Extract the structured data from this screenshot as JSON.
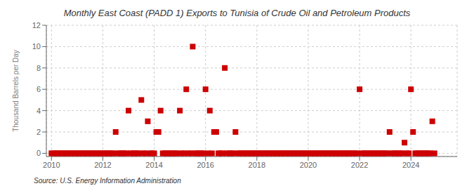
{
  "chart_data": {
    "type": "scatter",
    "title": "Monthly East Coast (PADD 1) Exports to Tunisia of Crude Oil and Petroleum Products",
    "ylabel": "Thousand Barrels per Day",
    "annotation": "Source: U.S. Energy Information Administration",
    "color": "#cc0000",
    "marker": "square",
    "grid": true,
    "xlim": [
      2009.8,
      2025.8
    ],
    "ylim": [
      -0.3,
      12
    ],
    "xticks": [
      2010,
      2012,
      2014,
      2016,
      2018,
      2020,
      2022,
      2024
    ],
    "yticks": [
      0,
      2,
      4,
      6,
      8,
      10,
      12
    ],
    "x": [
      2010.0,
      2010.083,
      2010.167,
      2010.25,
      2010.333,
      2010.417,
      2010.5,
      2010.583,
      2010.667,
      2010.75,
      2010.833,
      2010.917,
      2011.0,
      2011.083,
      2011.167,
      2011.25,
      2011.333,
      2011.417,
      2011.5,
      2011.583,
      2011.667,
      2011.75,
      2011.833,
      2011.917,
      2012.0,
      2012.083,
      2012.167,
      2012.25,
      2012.333,
      2012.417,
      2012.5,
      2012.583,
      2012.667,
      2012.75,
      2012.833,
      2012.917,
      2013.0,
      2013.083,
      2013.167,
      2013.25,
      2013.333,
      2013.417,
      2013.5,
      2013.583,
      2013.667,
      2013.75,
      2013.833,
      2013.917,
      2014.0,
      2014.083,
      2014.167,
      2014.25,
      2014.333,
      2014.417,
      2014.5,
      2014.583,
      2014.667,
      2014.75,
      2014.833,
      2014.917,
      2015.0,
      2015.083,
      2015.167,
      2015.25,
      2015.333,
      2015.417,
      2015.5,
      2015.583,
      2015.667,
      2015.75,
      2015.833,
      2015.917,
      2016.0,
      2016.083,
      2016.167,
      2016.25,
      2016.333,
      2016.417,
      2016.5,
      2016.583,
      2016.667,
      2016.75,
      2016.833,
      2016.917,
      2017.0,
      2017.083,
      2017.167,
      2017.25,
      2017.333,
      2017.417,
      2017.5,
      2017.583,
      2017.667,
      2017.75,
      2017.833,
      2017.917,
      2018.0,
      2018.083,
      2018.167,
      2018.25,
      2018.333,
      2018.417,
      2018.5,
      2018.583,
      2018.667,
      2018.75,
      2018.833,
      2018.917,
      2019.0,
      2019.083,
      2019.167,
      2019.25,
      2019.333,
      2019.417,
      2019.5,
      2019.583,
      2019.667,
      2019.75,
      2019.833,
      2019.917,
      2020.0,
      2020.083,
      2020.167,
      2020.25,
      2020.333,
      2020.417,
      2020.5,
      2020.583,
      2020.667,
      2020.75,
      2020.833,
      2020.917,
      2021.0,
      2021.083,
      2021.167,
      2021.25,
      2021.333,
      2021.417,
      2021.5,
      2021.583,
      2021.667,
      2021.75,
      2021.833,
      2021.917,
      2022.0,
      2022.083,
      2022.167,
      2022.25,
      2022.333,
      2022.417,
      2022.5,
      2022.583,
      2022.667,
      2022.75,
      2022.833,
      2022.917,
      2023.0,
      2023.083,
      2023.167,
      2023.25,
      2023.333,
      2023.417,
      2023.5,
      2023.583,
      2023.667,
      2023.75,
      2023.833,
      2023.917,
      2024.0,
      2024.083,
      2024.167,
      2024.25,
      2024.333,
      2024.417,
      2024.5,
      2024.583,
      2024.667,
      2024.75,
      2024.833,
      2024.917
    ],
    "values": [
      0,
      0,
      0,
      0,
      0,
      0,
      0,
      0,
      0,
      0,
      0,
      0,
      0,
      0,
      0,
      0,
      0,
      0,
      0,
      0,
      0,
      0,
      0,
      0,
      0,
      0,
      0,
      0,
      0,
      0,
      2,
      0,
      0,
      0,
      0,
      0,
      4,
      0,
      0,
      0,
      0,
      0,
      5,
      0,
      0,
      3,
      0,
      0,
      0,
      2,
      2,
      4,
      0,
      0,
      0,
      0,
      0,
      0,
      0,
      0,
      4,
      0,
      0,
      6,
      0,
      0,
      10,
      0,
      0,
      0,
      0,
      0,
      6,
      0,
      4,
      0,
      2,
      2,
      0,
      0,
      0,
      8,
      0,
      0,
      0,
      0,
      2,
      0,
      0,
      0,
      0,
      0,
      0,
      0,
      0,
      0,
      0,
      0,
      0,
      0,
      0,
      0,
      0,
      0,
      0,
      0,
      0,
      0,
      0,
      0,
      0,
      0,
      0,
      0,
      0,
      0,
      0,
      0,
      0,
      0,
      0,
      0,
      0,
      0,
      0,
      0,
      0,
      0,
      0,
      0,
      0,
      0,
      0,
      0,
      0,
      0,
      0,
      0,
      0,
      0,
      0,
      0,
      0,
      0,
      6,
      0,
      0,
      0,
      0,
      0,
      0,
      0,
      0,
      0,
      0,
      0,
      0,
      0,
      2,
      0,
      0,
      0,
      0,
      0,
      0,
      1,
      0,
      0,
      6,
      2,
      0,
      0,
      0,
      0,
      0,
      0,
      0,
      0,
      3,
      0
    ]
  }
}
